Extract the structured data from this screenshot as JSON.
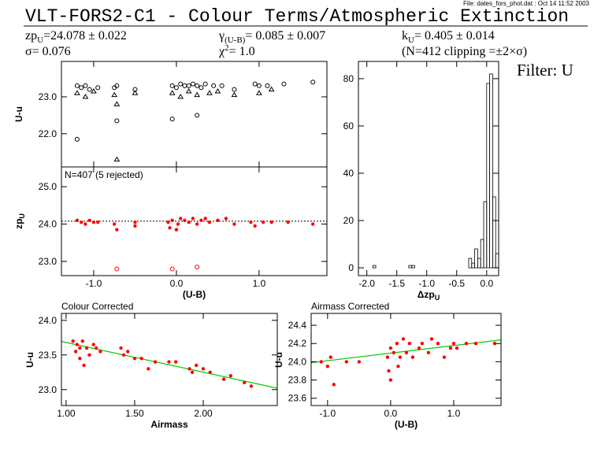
{
  "header": {
    "file": "File: dates_fors_phot.dat : Oct 14 11:52 2003",
    "title": "VLT-FORS2-C1 - Colour Terms/Atmospheric Extinction",
    "stats": [
      {
        "main": "zp",
        "sub": "U",
        "rest": "=24.078 ± 0.022"
      },
      {
        "main": "γ",
        "sub": "(U-B)",
        "rest": "= 0.085 ± 0.007"
      },
      {
        "main": "k",
        "sub": "U",
        "rest": "= 0.405 ± 0.014"
      },
      {
        "main": "σ= 0.076"
      },
      {
        "main": "χ",
        "sup": "2",
        "rest": "=  1.0"
      },
      {
        "main": "(N=412 clipping =±2×σ)"
      }
    ],
    "filter": "Filter: U"
  },
  "chart_data": [
    {
      "type": "scatter",
      "ylabel": "U-u",
      "xlim": [
        -1.39,
        1.82
      ],
      "ylim": [
        21.1,
        23.96
      ],
      "xticks": [
        -1,
        0,
        1
      ],
      "xtick_labels": false,
      "yticks": [
        {
          "value": 22,
          "label": "22.0"
        },
        {
          "value": 23,
          "label": "23.0"
        }
      ],
      "series": [
        {
          "marker": "circle",
          "color": "#000000",
          "x": [
            -1.2,
            -1.15,
            -1.1,
            -1.05,
            -0.95,
            -0.75,
            -0.72,
            -0.5,
            -0.05,
            0,
            0.05,
            0.1,
            0.15,
            0.2,
            0.25,
            0.3,
            0.35,
            0.45,
            0.55,
            0.7,
            0.95,
            1,
            1.1,
            1.3,
            1.65,
            -1.2,
            -0.72,
            -0.05,
            0.25
          ],
          "values": [
            23.3,
            23.25,
            23.3,
            23.2,
            23.25,
            23.25,
            23.3,
            23.2,
            23.3,
            23.25,
            23.35,
            23.3,
            23.3,
            23.35,
            23.3,
            23.25,
            23.35,
            23.3,
            23.3,
            23.2,
            23.35,
            23.3,
            23.3,
            23.35,
            23.4,
            21.85,
            22.35,
            22.4,
            22.5
          ]
        },
        {
          "marker": "triangle",
          "color": "#000000",
          "x": [
            -1.2,
            -1.1,
            -1,
            -0.75,
            -0.72,
            -0.5,
            -0.05,
            0.05,
            0.15,
            0.25,
            0.4,
            0.5,
            0.7,
            1,
            1.15,
            -0.72
          ],
          "values": [
            23.1,
            23,
            23.15,
            23.05,
            22.8,
            23.1,
            23.1,
            23,
            23.15,
            23.05,
            23.1,
            23.15,
            23.05,
            23.1,
            23.2,
            21.3
          ]
        }
      ]
    },
    {
      "type": "scatter",
      "annotation": "N=407 (5 rejected)",
      "xlabel": "(U-B)",
      "ylabel": "zp",
      "ylabel_sub": "U",
      "xlim": [
        -1.39,
        1.82
      ],
      "ylim": [
        22.62,
        25.53
      ],
      "xticks": [
        {
          "value": -1,
          "label": "-1.0"
        },
        {
          "value": 0,
          "label": "0.0"
        },
        {
          "value": 1,
          "label": "1.0"
        }
      ],
      "yticks": [
        {
          "value": 23,
          "label": "23.0"
        },
        {
          "value": 24,
          "label": "24.0"
        },
        {
          "value": 25,
          "label": "25.0"
        }
      ],
      "hline": 24.078,
      "hline_style": "dotted",
      "series": [
        {
          "marker": "dot",
          "color": "#ff0000",
          "x": [
            -1.2,
            -1.15,
            -1.1,
            -1.05,
            -1,
            -0.95,
            -0.75,
            -0.72,
            -0.5,
            -0.5,
            -0.1,
            -0.08,
            -0.05,
            0,
            0.02,
            0.05,
            0.1,
            0.15,
            0.2,
            0.25,
            0.3,
            0.35,
            0.4,
            0.5,
            0.6,
            0.7,
            0.9,
            0.95,
            1.05,
            1.15,
            1.35,
            1.65
          ],
          "values": [
            24.1,
            24.05,
            24,
            24.1,
            24.05,
            24.05,
            24,
            23.85,
            24.05,
            23.95,
            24.05,
            23.9,
            24.1,
            23.85,
            24,
            24.15,
            24.1,
            24.05,
            24.15,
            24,
            24.1,
            24.15,
            24.05,
            24.1,
            24.15,
            24,
            24.05,
            23.95,
            24.05,
            24.05,
            24.05,
            24
          ]
        },
        {
          "marker": "open_circle",
          "color": "#ff0000",
          "x": [
            -0.72,
            -0.05,
            0.25
          ],
          "values": [
            22.8,
            22.8,
            22.85
          ]
        }
      ]
    },
    {
      "type": "histogram",
      "xlabel": "Δzp",
      "xlabel_sub": "U",
      "color": "#000000",
      "xlim": [
        -2.14,
        0.2
      ],
      "ylim": [
        -3.3,
        87.3
      ],
      "xticks": [
        {
          "value": -2,
          "label": "-2.0"
        },
        -1.5,
        {
          "value": -1,
          "label": "-1.0"
        },
        -0.5,
        {
          "value": 0,
          "label": "0.0"
        }
      ],
      "yticks": [
        0,
        20,
        40,
        60,
        80
      ],
      "bins": [
        -2,
        -1.95,
        -1.9,
        -1.85,
        -1.8,
        -1.75,
        -1.7,
        -1.65,
        -1.6,
        -1.55,
        -1.5,
        -1.45,
        -1.4,
        -1.35,
        -1.3,
        -1.25,
        -1.2,
        -1.15,
        -1.1,
        -1.05,
        -1,
        -0.95,
        -0.9,
        -0.85,
        -0.8,
        -0.75,
        -0.7,
        -0.65,
        -0.6,
        -0.55,
        -0.5,
        -0.45,
        -0.4,
        -0.35,
        -0.3,
        -0.25,
        -0.2,
        -0.15,
        -0.1,
        -0.05,
        0,
        0.05,
        0.1,
        0.15,
        0.2
      ],
      "counts": [
        0,
        0,
        1,
        0,
        0,
        0,
        0,
        0,
        0,
        0,
        0,
        0,
        0,
        0,
        1,
        1,
        0,
        0,
        0,
        0,
        0,
        0,
        0,
        0,
        0,
        0,
        0,
        0,
        0,
        0,
        0,
        0,
        0,
        0,
        4,
        2,
        8,
        4,
        12,
        28,
        78,
        82,
        30,
        6
      ]
    },
    {
      "type": "scatter",
      "title": "Colour Corrected",
      "xlabel": "Airmass",
      "ylabel": "U-u",
      "xlim": [
        0.966,
        2.54
      ],
      "ylim": [
        22.77,
        24.1
      ],
      "xticks": [
        {
          "value": 1,
          "label": "1.00"
        },
        {
          "value": 1.5,
          "label": "1.50"
        },
        {
          "value": 2,
          "label": "2.00"
        }
      ],
      "yticks": [
        {
          "value": 23,
          "label": "23.0"
        },
        23.5,
        {
          "value": 24,
          "label": "24.0"
        }
      ],
      "fit": {
        "color": "#00cc00",
        "x": [
          0.966,
          2.54
        ],
        "values": [
          23.695,
          23.02
        ]
      },
      "series": [
        {
          "marker": "dot",
          "color": "#ff0000",
          "x": [
            1.05,
            1.07,
            1.08,
            1.1,
            1.1,
            1.12,
            1.13,
            1.15,
            1.17,
            1.2,
            1.22,
            1.25,
            1.4,
            1.42,
            1.45,
            1.5,
            1.55,
            1.6,
            1.65,
            1.75,
            1.8,
            1.9,
            1.92,
            1.95,
            2,
            2.05,
            2.15,
            2.2,
            2.3,
            2.35
          ],
          "values": [
            23.7,
            23.55,
            23.65,
            23.45,
            23.6,
            23.7,
            23.35,
            23.6,
            23.5,
            23.65,
            23.6,
            23.55,
            23.6,
            23.5,
            23.55,
            23.45,
            23.45,
            23.3,
            23.4,
            23.4,
            23.4,
            23.3,
            23.25,
            23.35,
            23.3,
            23.25,
            23.15,
            23.2,
            23.1,
            23.05
          ]
        }
      ]
    },
    {
      "type": "scatter",
      "title": "Airmass Corrected",
      "xlabel": "(U-B)",
      "ylabel": "U-u",
      "xlim": [
        -1.26,
        1.75
      ],
      "ylim": [
        23.52,
        24.53
      ],
      "xticks": [
        {
          "value": -1,
          "label": "-1.0"
        },
        {
          "value": 0,
          "label": "0.0"
        },
        {
          "value": 1,
          "label": "1.0"
        }
      ],
      "yticks": [
        23.6,
        23.8,
        {
          "value": 24,
          "label": "24.0"
        },
        24.2,
        24.4
      ],
      "fit": {
        "color": "#00cc00",
        "x": [
          -1.26,
          1.75
        ],
        "values": [
          23.99,
          24.24
        ]
      },
      "series": [
        {
          "marker": "dot",
          "color": "#ff0000",
          "x": [
            -1.1,
            -1,
            -0.95,
            -0.9,
            -0.7,
            -0.5,
            -0.05,
            -0.03,
            0,
            0,
            0.05,
            0.1,
            0.12,
            0.15,
            0.2,
            0.25,
            0.3,
            0.35,
            0.45,
            0.5,
            0.6,
            0.65,
            0.75,
            0.85,
            0.95,
            1,
            1.05,
            1.2,
            1.35,
            1.65
          ],
          "values": [
            24,
            23.95,
            24.05,
            23.75,
            24,
            24,
            24.05,
            23.9,
            23.8,
            24.15,
            24.1,
            24.2,
            23.95,
            24.05,
            24.25,
            24.1,
            24.2,
            24.05,
            24.15,
            24.2,
            24.1,
            24.25,
            24.2,
            24.05,
            24.15,
            24.2,
            24.15,
            24.2,
            24.2,
            24.2
          ]
        }
      ]
    }
  ]
}
